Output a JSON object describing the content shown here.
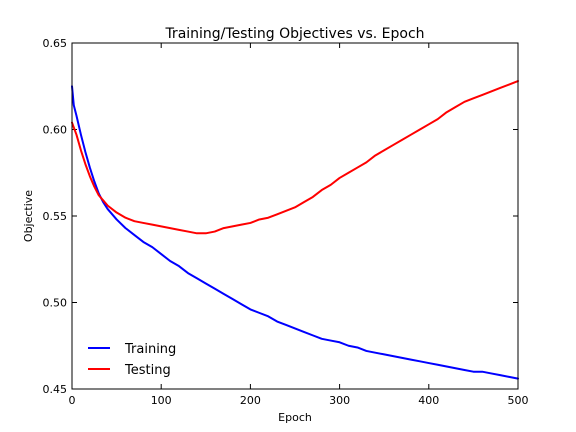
{
  "chart_data": {
    "type": "line",
    "title": "Training/Testing Objectives vs. Epoch",
    "xlabel": "Epoch",
    "ylabel": "Objective",
    "xlim": [
      0,
      500
    ],
    "ylim": [
      0.45,
      0.65
    ],
    "xticks": [
      0,
      100,
      200,
      300,
      400,
      500
    ],
    "xtick_labels": [
      "0",
      "100",
      "200",
      "300",
      "400",
      "500"
    ],
    "yticks": [
      0.45,
      0.5,
      0.55,
      0.6,
      0.65
    ],
    "ytick_labels": [
      "0.45",
      "0.50",
      "0.55",
      "0.60",
      "0.65"
    ],
    "grid": false,
    "legend_position": "bottom-left",
    "series": [
      {
        "name": "Training",
        "color": "#0000ff",
        "x": [
          0,
          2,
          5,
          10,
          15,
          20,
          25,
          30,
          35,
          40,
          50,
          60,
          70,
          80,
          90,
          100,
          110,
          120,
          130,
          140,
          150,
          160,
          170,
          180,
          190,
          200,
          210,
          220,
          230,
          240,
          250,
          260,
          270,
          280,
          290,
          300,
          310,
          320,
          330,
          340,
          350,
          360,
          370,
          380,
          390,
          400,
          410,
          420,
          430,
          440,
          450,
          460,
          470,
          480,
          490,
          500
        ],
        "y": [
          0.625,
          0.614,
          0.608,
          0.597,
          0.587,
          0.578,
          0.57,
          0.563,
          0.558,
          0.554,
          0.548,
          0.543,
          0.539,
          0.535,
          0.532,
          0.528,
          0.524,
          0.521,
          0.517,
          0.514,
          0.511,
          0.508,
          0.505,
          0.502,
          0.499,
          0.496,
          0.494,
          0.492,
          0.489,
          0.487,
          0.485,
          0.483,
          0.481,
          0.479,
          0.478,
          0.477,
          0.475,
          0.474,
          0.472,
          0.471,
          0.47,
          0.469,
          0.468,
          0.467,
          0.466,
          0.465,
          0.464,
          0.463,
          0.462,
          0.461,
          0.46,
          0.46,
          0.459,
          0.458,
          0.457,
          0.456
        ]
      },
      {
        "name": "Testing",
        "color": "#ff0000",
        "x": [
          0,
          5,
          10,
          15,
          20,
          25,
          30,
          35,
          40,
          50,
          60,
          70,
          80,
          90,
          100,
          110,
          120,
          130,
          140,
          150,
          160,
          170,
          180,
          190,
          200,
          210,
          220,
          230,
          240,
          250,
          260,
          270,
          280,
          290,
          300,
          310,
          320,
          330,
          340,
          350,
          360,
          370,
          380,
          390,
          400,
          410,
          420,
          430,
          440,
          450,
          460,
          470,
          480,
          490,
          500
        ],
        "y": [
          0.604,
          0.597,
          0.588,
          0.58,
          0.573,
          0.567,
          0.562,
          0.559,
          0.556,
          0.552,
          0.549,
          0.547,
          0.546,
          0.545,
          0.544,
          0.543,
          0.542,
          0.541,
          0.54,
          0.54,
          0.541,
          0.543,
          0.544,
          0.545,
          0.546,
          0.548,
          0.549,
          0.551,
          0.553,
          0.555,
          0.558,
          0.561,
          0.565,
          0.568,
          0.572,
          0.575,
          0.578,
          0.581,
          0.585,
          0.588,
          0.591,
          0.594,
          0.597,
          0.6,
          0.603,
          0.606,
          0.61,
          0.613,
          0.616,
          0.618,
          0.62,
          0.622,
          0.624,
          0.626,
          0.628
        ]
      }
    ]
  }
}
